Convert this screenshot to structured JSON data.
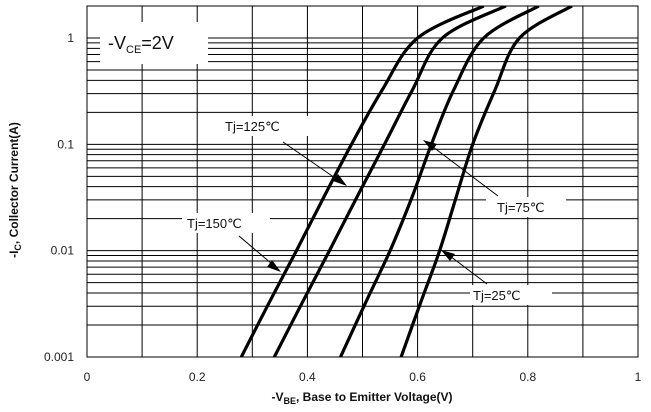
{
  "chart_data": {
    "type": "line",
    "y_scale": "log",
    "x_ticks": [
      "0",
      "0.2",
      "0.4",
      "0.6",
      "0.8",
      "1"
    ],
    "y_ticks": [
      "0.001",
      "0.01",
      "0.1",
      "1"
    ],
    "xlim": [
      0,
      1
    ],
    "ylim": [
      0.001,
      2
    ],
    "grid": true,
    "xlabel": {
      "prefix": "-V",
      "sub": "BE",
      "suffix": ", Base to Emitter Voltage(V)"
    },
    "ylabel": {
      "prefix": "-I",
      "sub": "C",
      "suffix": ", Collector Current(A)"
    },
    "condition": {
      "prefix": "-V",
      "sub": "CE",
      "suffix": "=2V"
    },
    "series": [
      {
        "name": "Tj=150℃",
        "points": [
          [
            0.28,
            0.001
          ],
          [
            0.33,
            0.0032
          ],
          [
            0.38,
            0.01
          ],
          [
            0.43,
            0.032
          ],
          [
            0.48,
            0.1
          ],
          [
            0.535,
            0.32
          ],
          [
            0.6,
            1.0
          ],
          [
            0.72,
            2.0
          ]
        ]
      },
      {
        "name": "Tj=125℃",
        "points": [
          [
            0.34,
            0.001
          ],
          [
            0.39,
            0.0032
          ],
          [
            0.44,
            0.01
          ],
          [
            0.49,
            0.032
          ],
          [
            0.54,
            0.1
          ],
          [
            0.59,
            0.32
          ],
          [
            0.645,
            1.0
          ],
          [
            0.76,
            2.0
          ]
        ]
      },
      {
        "name": "Tj=75℃",
        "points": [
          [
            0.46,
            0.001
          ],
          [
            0.505,
            0.0032
          ],
          [
            0.55,
            0.01
          ],
          [
            0.59,
            0.032
          ],
          [
            0.625,
            0.1
          ],
          [
            0.665,
            0.32
          ],
          [
            0.72,
            1.0
          ],
          [
            0.82,
            2.0
          ]
        ]
      },
      {
        "name": "Tj=25℃",
        "points": [
          [
            0.57,
            0.001
          ],
          [
            0.605,
            0.0032
          ],
          [
            0.64,
            0.01
          ],
          [
            0.67,
            0.032
          ],
          [
            0.7,
            0.1
          ],
          [
            0.74,
            0.32
          ],
          [
            0.785,
            1.0
          ],
          [
            0.88,
            2.0
          ]
        ]
      }
    ],
    "annotations": [
      {
        "text": "Tj=125℃",
        "series": "Tj=125℃"
      },
      {
        "text": "Tj=150℃",
        "series": "Tj=150℃"
      },
      {
        "text": "Tj=75℃",
        "series": "Tj=75℃"
      },
      {
        "text": "Tj=25℃",
        "series": "Tj=25℃"
      }
    ]
  }
}
